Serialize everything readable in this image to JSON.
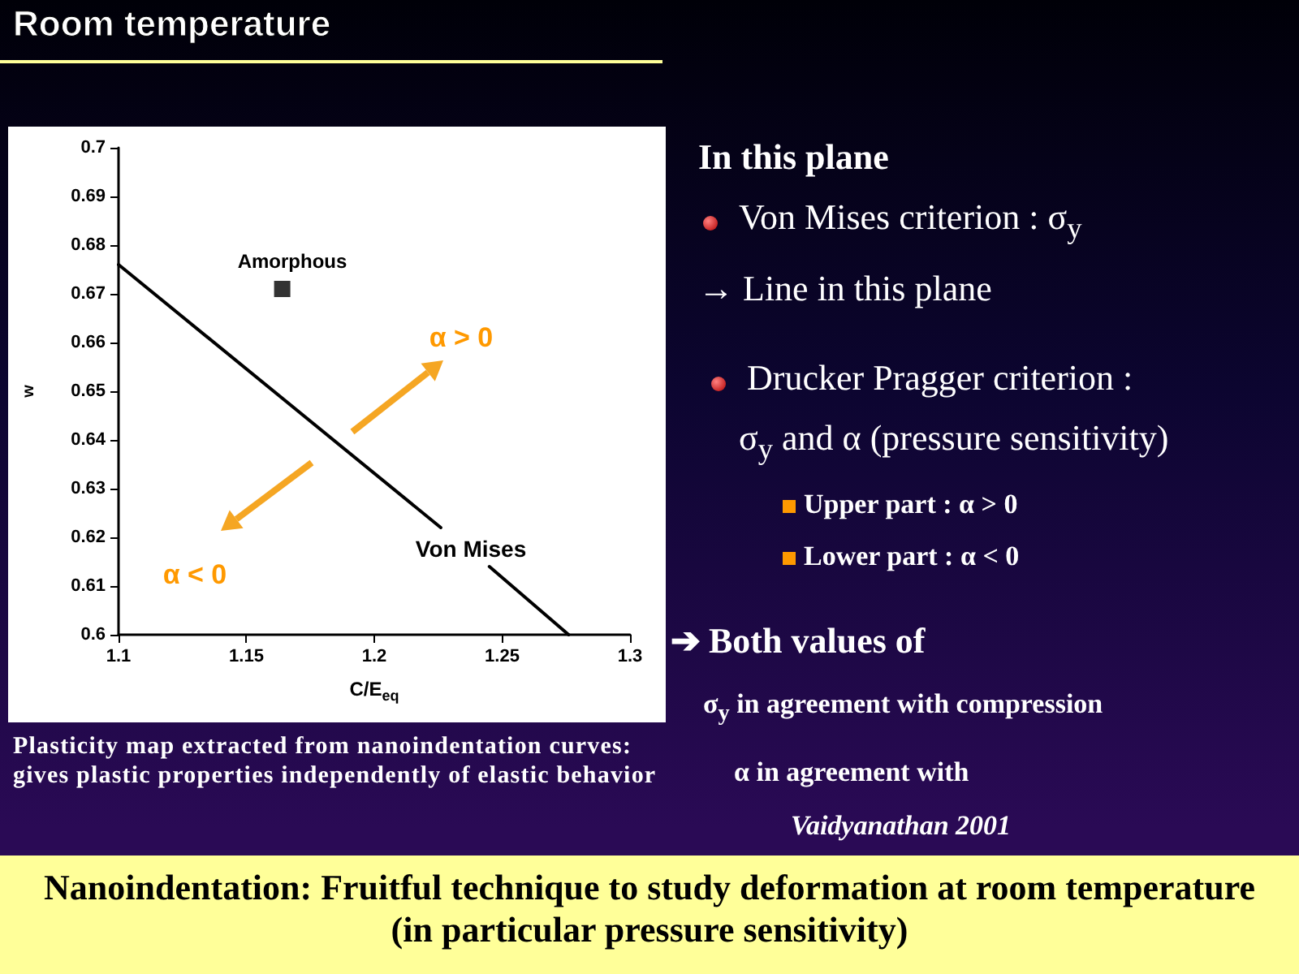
{
  "chart_data": {
    "type": "line",
    "title": "Room temperature",
    "xlabel": "C/E$_{eq}$",
    "ylabel": "w",
    "xlim": [
      1.1,
      1.3
    ],
    "xticks": [
      1.1,
      1.15,
      1.2,
      1.25,
      1.3
    ],
    "ylim": [
      0.6,
      0.7
    ],
    "yticks": [
      0.6,
      0.61,
      0.62,
      0.63,
      0.64,
      0.65,
      0.66,
      0.67,
      0.68,
      0.69,
      0.7
    ],
    "grid": false,
    "series": [
      {
        "color": "#000000",
        "marker": "none",
        "x": [
          1.1,
          1.226,
          1.235,
          1.245,
          1.276
        ],
        "values": [
          0.676,
          0.622,
          null,
          0.614,
          0.6
        ]
      },
      {
        "type": "scatter",
        "color": "#000000",
        "marker": "square",
        "x": [
          1.164
        ],
        "values": [
          0.671
        ]
      }
    ],
    "annotations": [
      "Amorphous",
      "α > 0",
      "α < 0",
      "Von Mises",
      "In this plane",
      "Von Mises criterion : σ$_{y}$",
      "→ Line in this plane",
      "Drucker Pragger criterion :",
      "σ$_{y}$ and α (pressure sensitivity)",
      "Upper part : α > 0",
      "Lower part : α < 0",
      "➔ Both values of",
      "σ$_{y}$ in agreement with compression",
      "α in agreement with",
      "Vaidyanathan 2001",
      "Plasticity map extracted from nanoindentation curves: gives plastic properties independently of elastic behavior",
      "Nanoindentation: Fruitful technique to study deformation at room temperature (in particular pressure sensitivity)"
    ]
  }
}
